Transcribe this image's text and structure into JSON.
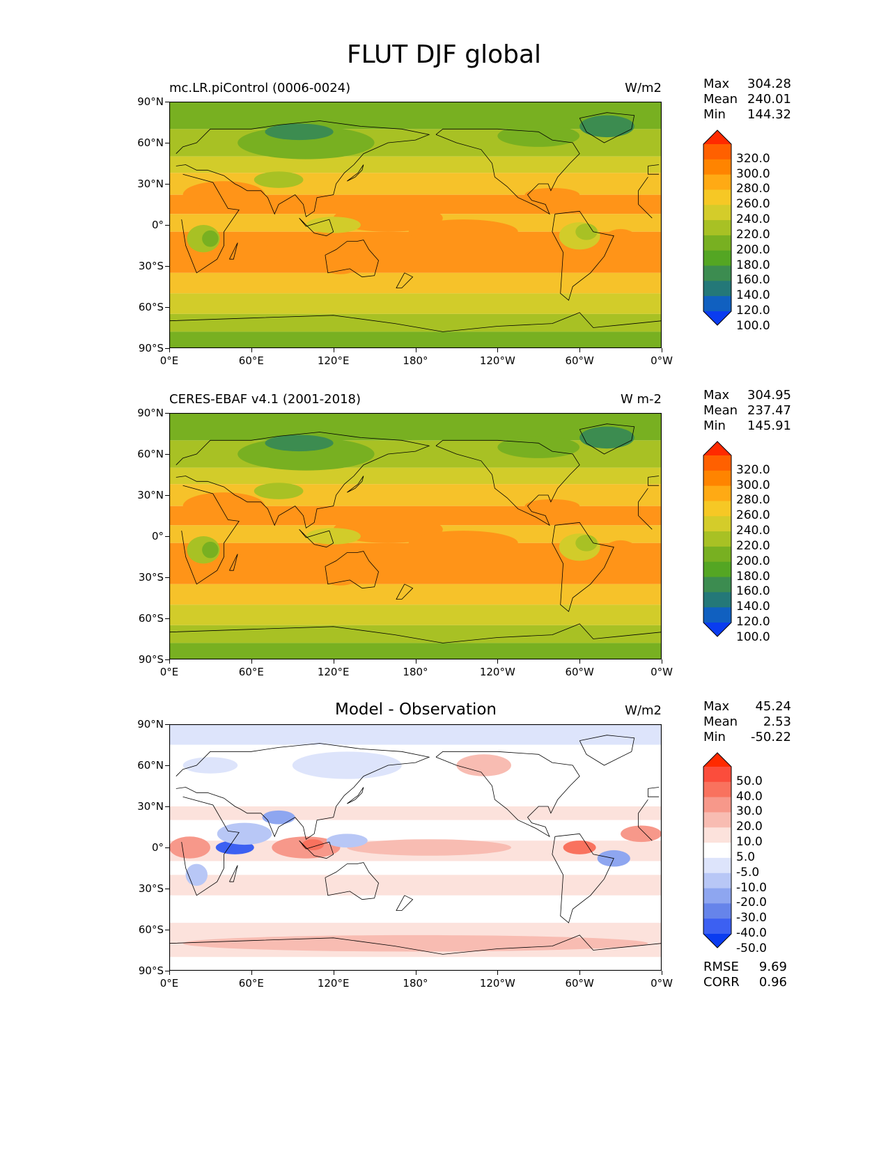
{
  "title": "FLUT DJF global",
  "panels": [
    {
      "title_left": "mc.LR.piControl (0006-0024)",
      "title_center": "",
      "units": "W/m2",
      "stats": [
        {
          "label": "Max",
          "value": "304.28"
        },
        {
          "label": "Mean",
          "value": "240.01"
        },
        {
          "label": "Min",
          "value": "144.32"
        }
      ],
      "colorbar": {
        "labels": [
          "320.0",
          "300.0",
          "280.0",
          "260.0",
          "240.0",
          "220.0",
          "200.0",
          "180.0",
          "160.0",
          "140.0",
          "120.0",
          "100.0"
        ],
        "colors": [
          "#ff2a00",
          "#ff6000",
          "#ff8400",
          "#ffaa14",
          "#f6c825",
          "#d4cc2a",
          "#a8c124",
          "#78b021",
          "#54a623",
          "#3c8c50",
          "#247878",
          "#1060c0",
          "#0a3cf0"
        ]
      }
    },
    {
      "title_left": "CERES-EBAF v4.1 (2001-2018)",
      "title_center": "",
      "units": "W m-2",
      "stats": [
        {
          "label": "Max",
          "value": "304.95"
        },
        {
          "label": "Mean",
          "value": "237.47"
        },
        {
          "label": "Min",
          "value": "145.91"
        }
      ],
      "colorbar": {
        "labels": [
          "320.0",
          "300.0",
          "280.0",
          "260.0",
          "240.0",
          "220.0",
          "200.0",
          "180.0",
          "160.0",
          "140.0",
          "120.0",
          "100.0"
        ],
        "colors": [
          "#ff2a00",
          "#ff6000",
          "#ff8400",
          "#ffaa14",
          "#f6c825",
          "#d4cc2a",
          "#a8c124",
          "#78b021",
          "#54a623",
          "#3c8c50",
          "#247878",
          "#1060c0",
          "#0a3cf0"
        ]
      }
    },
    {
      "title_left": "",
      "title_center": "Model - Observation",
      "units": "W/m2",
      "stats": [
        {
          "label": "Max",
          "value": "45.24"
        },
        {
          "label": "Mean",
          "value": "2.53"
        },
        {
          "label": "Min",
          "value": "-50.22"
        }
      ],
      "colorbar": {
        "labels": [
          "50.0",
          "40.0",
          "30.0",
          "20.0",
          "10.0",
          "5.0",
          "-5.0",
          "-10.0",
          "-20.0",
          "-30.0",
          "-40.0",
          "-50.0"
        ],
        "colors": [
          "#ff2a00",
          "#fb4d3c",
          "#f9725e",
          "#f7988a",
          "#f8bcb2",
          "#fce2dc",
          "#ffffff",
          "#dde4fb",
          "#b8c7f6",
          "#8ea6f0",
          "#6684ea",
          "#3c60f2",
          "#0a3cf0"
        ]
      },
      "metrics": [
        {
          "label": "RMSE",
          "value": "9.69"
        },
        {
          "label": "CORR",
          "value": "0.96"
        }
      ]
    }
  ],
  "axes": {
    "y_ticks": [
      "90°N",
      "60°N",
      "30°N",
      "0°",
      "30°S",
      "60°S",
      "90°S"
    ],
    "x_ticks": [
      "0°E",
      "60°E",
      "120°E",
      "180°",
      "120°W",
      "60°W",
      "0°W"
    ]
  },
  "map_colors": {
    "ocean_tropics": "#ff9418",
    "ocean_subtropics": "#f6c22a",
    "midlat": "#d2cc2a",
    "highlat": "#a8c124",
    "polar": "#78b021",
    "cold": "#3c8c50",
    "diff_pos": "#f7988a",
    "diff_neg": "#8ea6f0"
  }
}
